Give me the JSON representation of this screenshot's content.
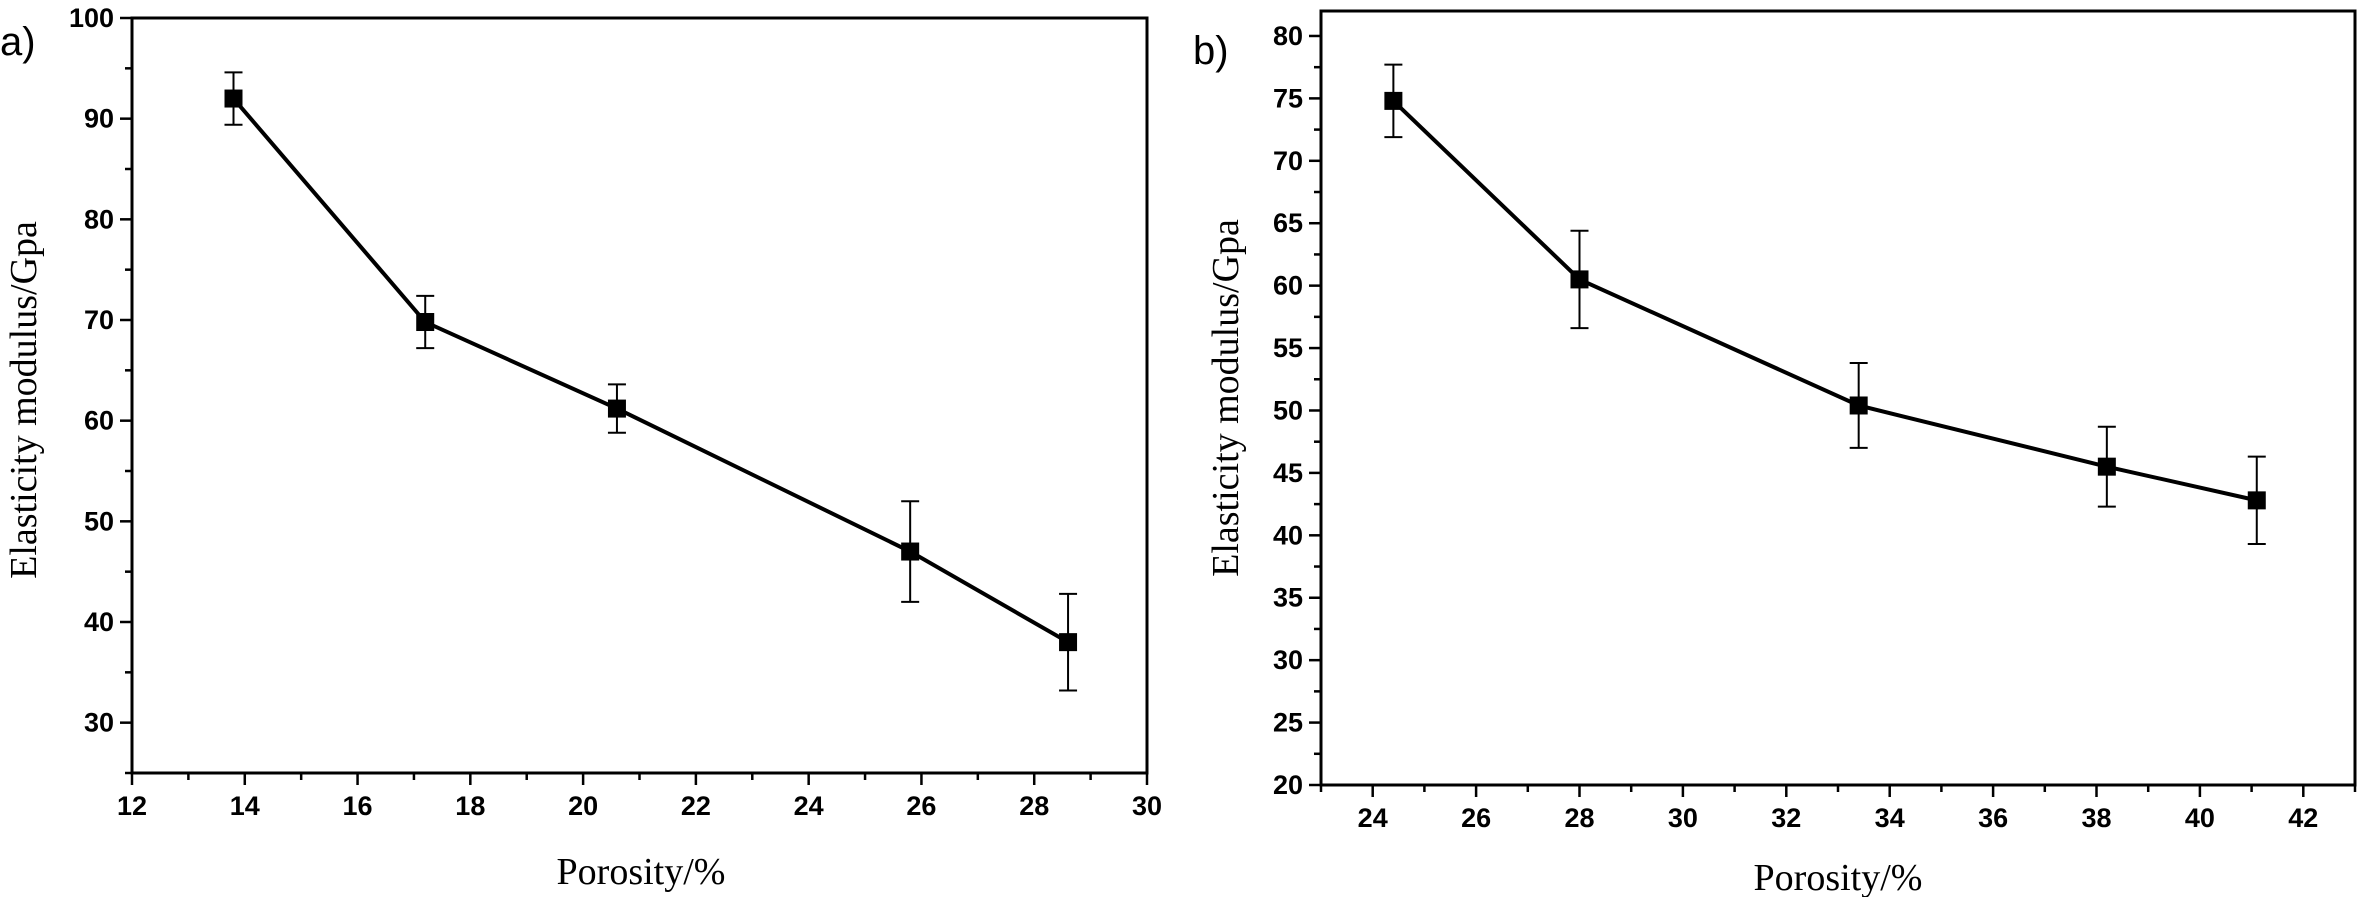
{
  "chart_data": [
    {
      "type": "line",
      "panel_label": "a)",
      "xlabel": "Porosity/%",
      "ylabel": "Elasticity modulus/Gpa",
      "xlim": [
        12,
        30
      ],
      "ylim": [
        25,
        100
      ],
      "x_ticks": [
        12,
        14,
        16,
        18,
        20,
        22,
        24,
        26,
        28,
        30
      ],
      "y_ticks": [
        30,
        40,
        50,
        60,
        70,
        80,
        90,
        100
      ],
      "x_minor_step": 1,
      "y_minor_step": 5,
      "series": [
        {
          "x": [
            13.8,
            17.2,
            20.6,
            25.8,
            28.6
          ],
          "y": [
            92,
            69.8,
            61.2,
            47,
            38
          ],
          "error": [
            2.6,
            2.6,
            2.4,
            5,
            4.8
          ]
        }
      ]
    },
    {
      "type": "line",
      "panel_label": "b)",
      "xlabel": "Porosity/%",
      "ylabel": "Elasticity modulus/Gpa",
      "xlim": [
        23,
        43
      ],
      "ylim": [
        20,
        82
      ],
      "x_ticks": [
        24,
        26,
        28,
        30,
        32,
        34,
        36,
        38,
        40,
        42
      ],
      "y_ticks": [
        20,
        25,
        30,
        35,
        40,
        45,
        50,
        55,
        60,
        65,
        70,
        75,
        80
      ],
      "x_minor_step": 1,
      "y_minor_step": 2.5,
      "series": [
        {
          "x": [
            24.4,
            28,
            33.4,
            38.2,
            41.1
          ],
          "y": [
            74.8,
            60.5,
            50.4,
            45.5,
            42.8
          ],
          "error": [
            2.9,
            3.9,
            3.4,
            3.2,
            3.5
          ]
        }
      ]
    }
  ]
}
